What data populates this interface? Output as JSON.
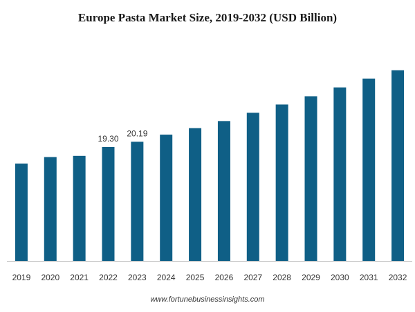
{
  "chart_data": {
    "type": "bar",
    "title": "Europe Pasta Market Size, 2019-2032 (USD Billion)",
    "xlabel": "",
    "ylabel": "",
    "categories": [
      "2019",
      "2020",
      "2021",
      "2022",
      "2023",
      "2024",
      "2025",
      "2026",
      "2027",
      "2028",
      "2029",
      "2030",
      "2031",
      "2032"
    ],
    "values": [
      16.5,
      17.6,
      17.8,
      19.3,
      20.19,
      21.4,
      22.5,
      23.7,
      25.1,
      26.5,
      27.9,
      29.4,
      30.9,
      32.3
    ],
    "data_labels": {
      "2022": "19.30",
      "2023": "20.19"
    },
    "ylim": [
      0,
      34
    ],
    "grid": false,
    "legend": "none",
    "bar_color": "#0f5f86"
  },
  "source": "www.fortunebusinessinsights.com"
}
